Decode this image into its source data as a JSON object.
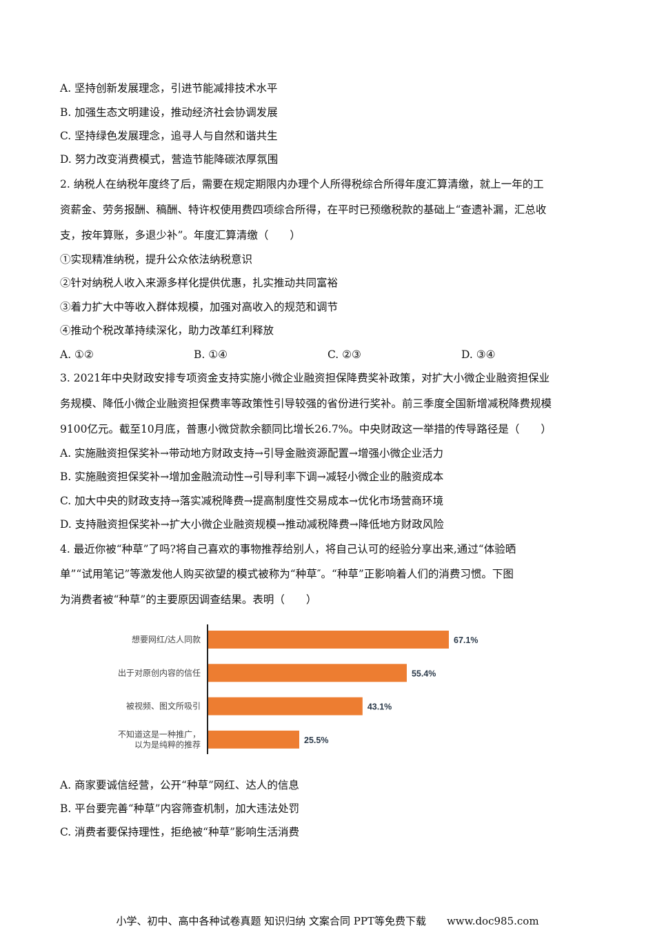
{
  "q1_options": [
    "A. 坚持创新发展理念，引进节能减排技术水平",
    "B. 加强生态文明建设，推动经济社会协调发展",
    "C. 坚持绿色发展理念，追寻人与自然和谐共生",
    "D. 努力改变消费模式，营造节能降碳浓厚氛围"
  ],
  "q2": {
    "stem": [
      "2. 纳税人在纳税年度终了后，需要在规定期限内办理个人所得税综合所得年度汇算清缴，就上一年的工",
      "资薪金、劳务报酬、稿酬、特许权使用费四项综合所得，在平时已预缴税款的基础上“查遗补漏，汇总收",
      "支，按年算账，多退少补”。年度汇算清缴（　　）"
    ],
    "statements": [
      "①实现精准纳税，提升公众依法纳税意识",
      "②针对纳税人收入来源多样化提供优惠，扎实推动共同富裕",
      "③着力扩大中等收入群体规模，加强对高收入的规范和调节",
      "④推动个税改革持续深化，助力改革红利释放"
    ],
    "options": [
      "A. ①②",
      "B. ①④",
      "C. ②③",
      "D. ③④"
    ]
  },
  "q3": {
    "stem": [
      "3. 2021年中央财政安排专项资金支持实施小微企业融资担保降费奖补政策，对扩大小微企业融资担保业",
      "务规模、降低小微企业融资担保费率等政策性引导较强的省份进行奖补。前三季度全国新增减税降费规模",
      "9100亿元。截至10月底，普惠小微贷款余额同比增长26.7%。中央财政这一举措的传导路径是（　　）"
    ],
    "options": [
      "A. 实施融资担保奖补→带动地方财政支持→引导金融资源配置→增强小微企业活力",
      "B. 实施融资担保奖补→增加金融流动性→引导利率下调→减轻小微企业的融资成本",
      "C. 加大中央的财政支持→落实减税降费→提高制度性交易成本→优化市场营商环境",
      "D. 支持融资担保奖补→扩大小微企业融资规模→推动减税降费→降低地方财政风险"
    ]
  },
  "q4": {
    "stem": [
      "4. 最近你被“种草”了吗?将自己喜欢的事物推荐给别人，将自己认可的经验分享出来,通过“体验晒",
      "单”“试用笔记”等激发他人购买欲望的模式被称为“种草″。“种草”正影响着人们的消费习惯。下图",
      "为消费者被“种草”的主要原因调查结果。表明（　　）"
    ],
    "options": [
      "A. 商家要诚信经营，公开“种草”网红、达人的信息",
      "B. 平台要完善“种草”内容筛查机制，加大违法处罚",
      "C. 消费者要保持理性，拒绝被“种草”影响生活消费"
    ]
  },
  "chart_data": {
    "type": "bar",
    "orientation": "horizontal",
    "categories": [
      [
        "想要网红/达人同款"
      ],
      [
        "出于对原创内容的信任"
      ],
      [
        "被视频、图文所吸引"
      ],
      [
        "不知道这是一种推广，",
        "以为是纯粹的推荐"
      ]
    ],
    "values": [
      67.1,
      55.4,
      43.1,
      25.5
    ],
    "value_labels": [
      "67.1%",
      "55.4%",
      "43.1%",
      "25.5%"
    ],
    "unit": "%",
    "bar_color": "#ED7D31",
    "grid": false
  },
  "footer": "小学、初中、高中各种试卷真题 知识归纳 文案合同 PPT等免费下载　　www.doc985.com"
}
